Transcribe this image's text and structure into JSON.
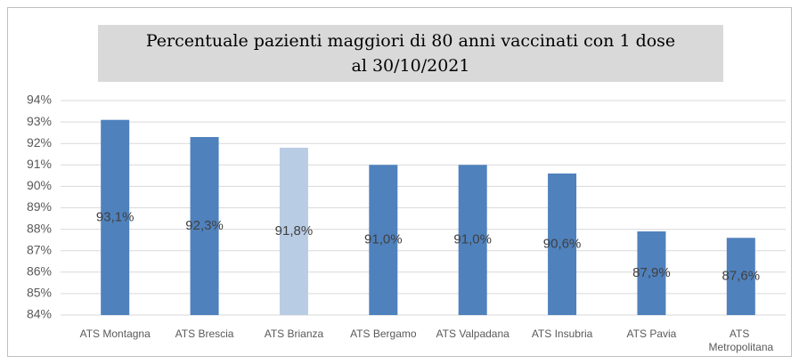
{
  "chart_data": {
    "type": "bar",
    "title": [
      "Percentuale pazienti maggiori di 80 anni vaccinati con 1 dose",
      "al 30/10/2021"
    ],
    "categories": [
      "ATS Montagna",
      "ATS Brescia",
      "ATS Brianza",
      "ATS Bergamo",
      "ATS Valpadana",
      "ATS Insubria",
      "ATS Pavia",
      "ATS Metropolitana"
    ],
    "values": [
      93.1,
      92.3,
      91.8,
      91.0,
      91.0,
      90.6,
      87.9,
      87.6
    ],
    "value_labels": [
      "93,1%",
      "92,3%",
      "91,8%",
      "91,0%",
      "91,0%",
      "90,6%",
      "87,9%",
      "87,6%"
    ],
    "colors": [
      "#4f81bd",
      "#4f81bd",
      "#b8cce4",
      "#4f81bd",
      "#4f81bd",
      "#4f81bd",
      "#4f81bd",
      "#4f81bd"
    ],
    "ylim": [
      84,
      94
    ],
    "yticks": [
      {
        "value": 84,
        "label": "84%"
      },
      {
        "value": 85,
        "label": "85%"
      },
      {
        "value": 86,
        "label": "86%"
      },
      {
        "value": 87,
        "label": "87%"
      },
      {
        "value": 88,
        "label": "88%"
      },
      {
        "value": 89,
        "label": "89%"
      },
      {
        "value": 90,
        "label": "90%"
      },
      {
        "value": 91,
        "label": "91%"
      },
      {
        "value": 92,
        "label": "92%"
      },
      {
        "value": 93,
        "label": "93%"
      },
      {
        "value": 94,
        "label": "94%"
      }
    ],
    "grid": true
  }
}
